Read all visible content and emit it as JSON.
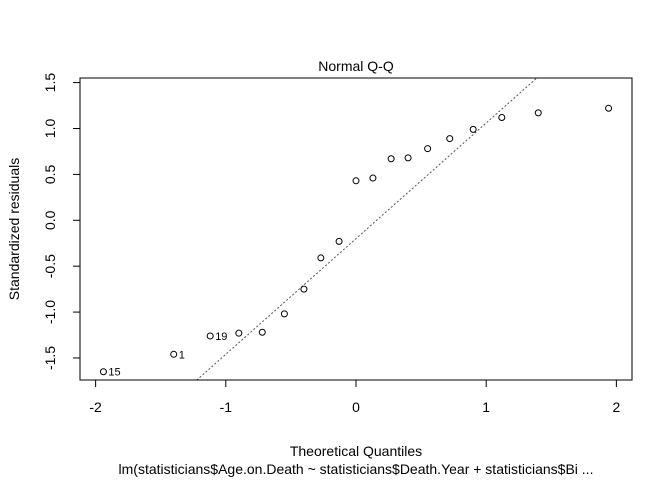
{
  "chart_data": {
    "type": "scatter",
    "title": "Normal Q-Q",
    "xlabel": "Theoretical Quantiles",
    "ylabel": "Standardized residuals",
    "subtitle": "lm(statisticians$Age.on.Death ~ statisticians$Death.Year + statisticians$Bi ...",
    "xlim": [
      -2.12,
      2.12
    ],
    "ylim": [
      -1.74,
      1.55
    ],
    "x_ticks": [
      -2,
      -1,
      0,
      1,
      2
    ],
    "x_tick_labels": [
      "-2",
      "-1",
      "0",
      "1",
      "2"
    ],
    "y_ticks": [
      -1.5,
      -1.0,
      -0.5,
      0.0,
      0.5,
      1.0,
      1.5
    ],
    "y_tick_labels": [
      "-1.5",
      "-1.0",
      "-0.5",
      "0.0",
      "0.5",
      "1.0",
      "1.5"
    ],
    "grid": false,
    "reference_line": {
      "slope": 1.26,
      "intercept": -0.2,
      "style": "dotted"
    },
    "points": [
      {
        "x": -1.94,
        "y": -1.65,
        "label": "15"
      },
      {
        "x": -1.4,
        "y": -1.46,
        "label": "1"
      },
      {
        "x": -1.12,
        "y": -1.26,
        "label": "19"
      },
      {
        "x": -0.9,
        "y": -1.23,
        "label": ""
      },
      {
        "x": -0.72,
        "y": -1.22,
        "label": ""
      },
      {
        "x": -0.55,
        "y": -1.02,
        "label": ""
      },
      {
        "x": -0.4,
        "y": -0.75,
        "label": ""
      },
      {
        "x": -0.27,
        "y": -0.41,
        "label": ""
      },
      {
        "x": -0.13,
        "y": -0.23,
        "label": ""
      },
      {
        "x": 0.0,
        "y": 0.43,
        "label": ""
      },
      {
        "x": 0.13,
        "y": 0.46,
        "label": ""
      },
      {
        "x": 0.27,
        "y": 0.67,
        "label": ""
      },
      {
        "x": 0.4,
        "y": 0.68,
        "label": ""
      },
      {
        "x": 0.55,
        "y": 0.78,
        "label": ""
      },
      {
        "x": 0.72,
        "y": 0.89,
        "label": ""
      },
      {
        "x": 0.9,
        "y": 0.99,
        "label": ""
      },
      {
        "x": 1.12,
        "y": 1.12,
        "label": ""
      },
      {
        "x": 1.4,
        "y": 1.17,
        "label": ""
      },
      {
        "x": 1.94,
        "y": 1.22,
        "label": ""
      }
    ]
  }
}
